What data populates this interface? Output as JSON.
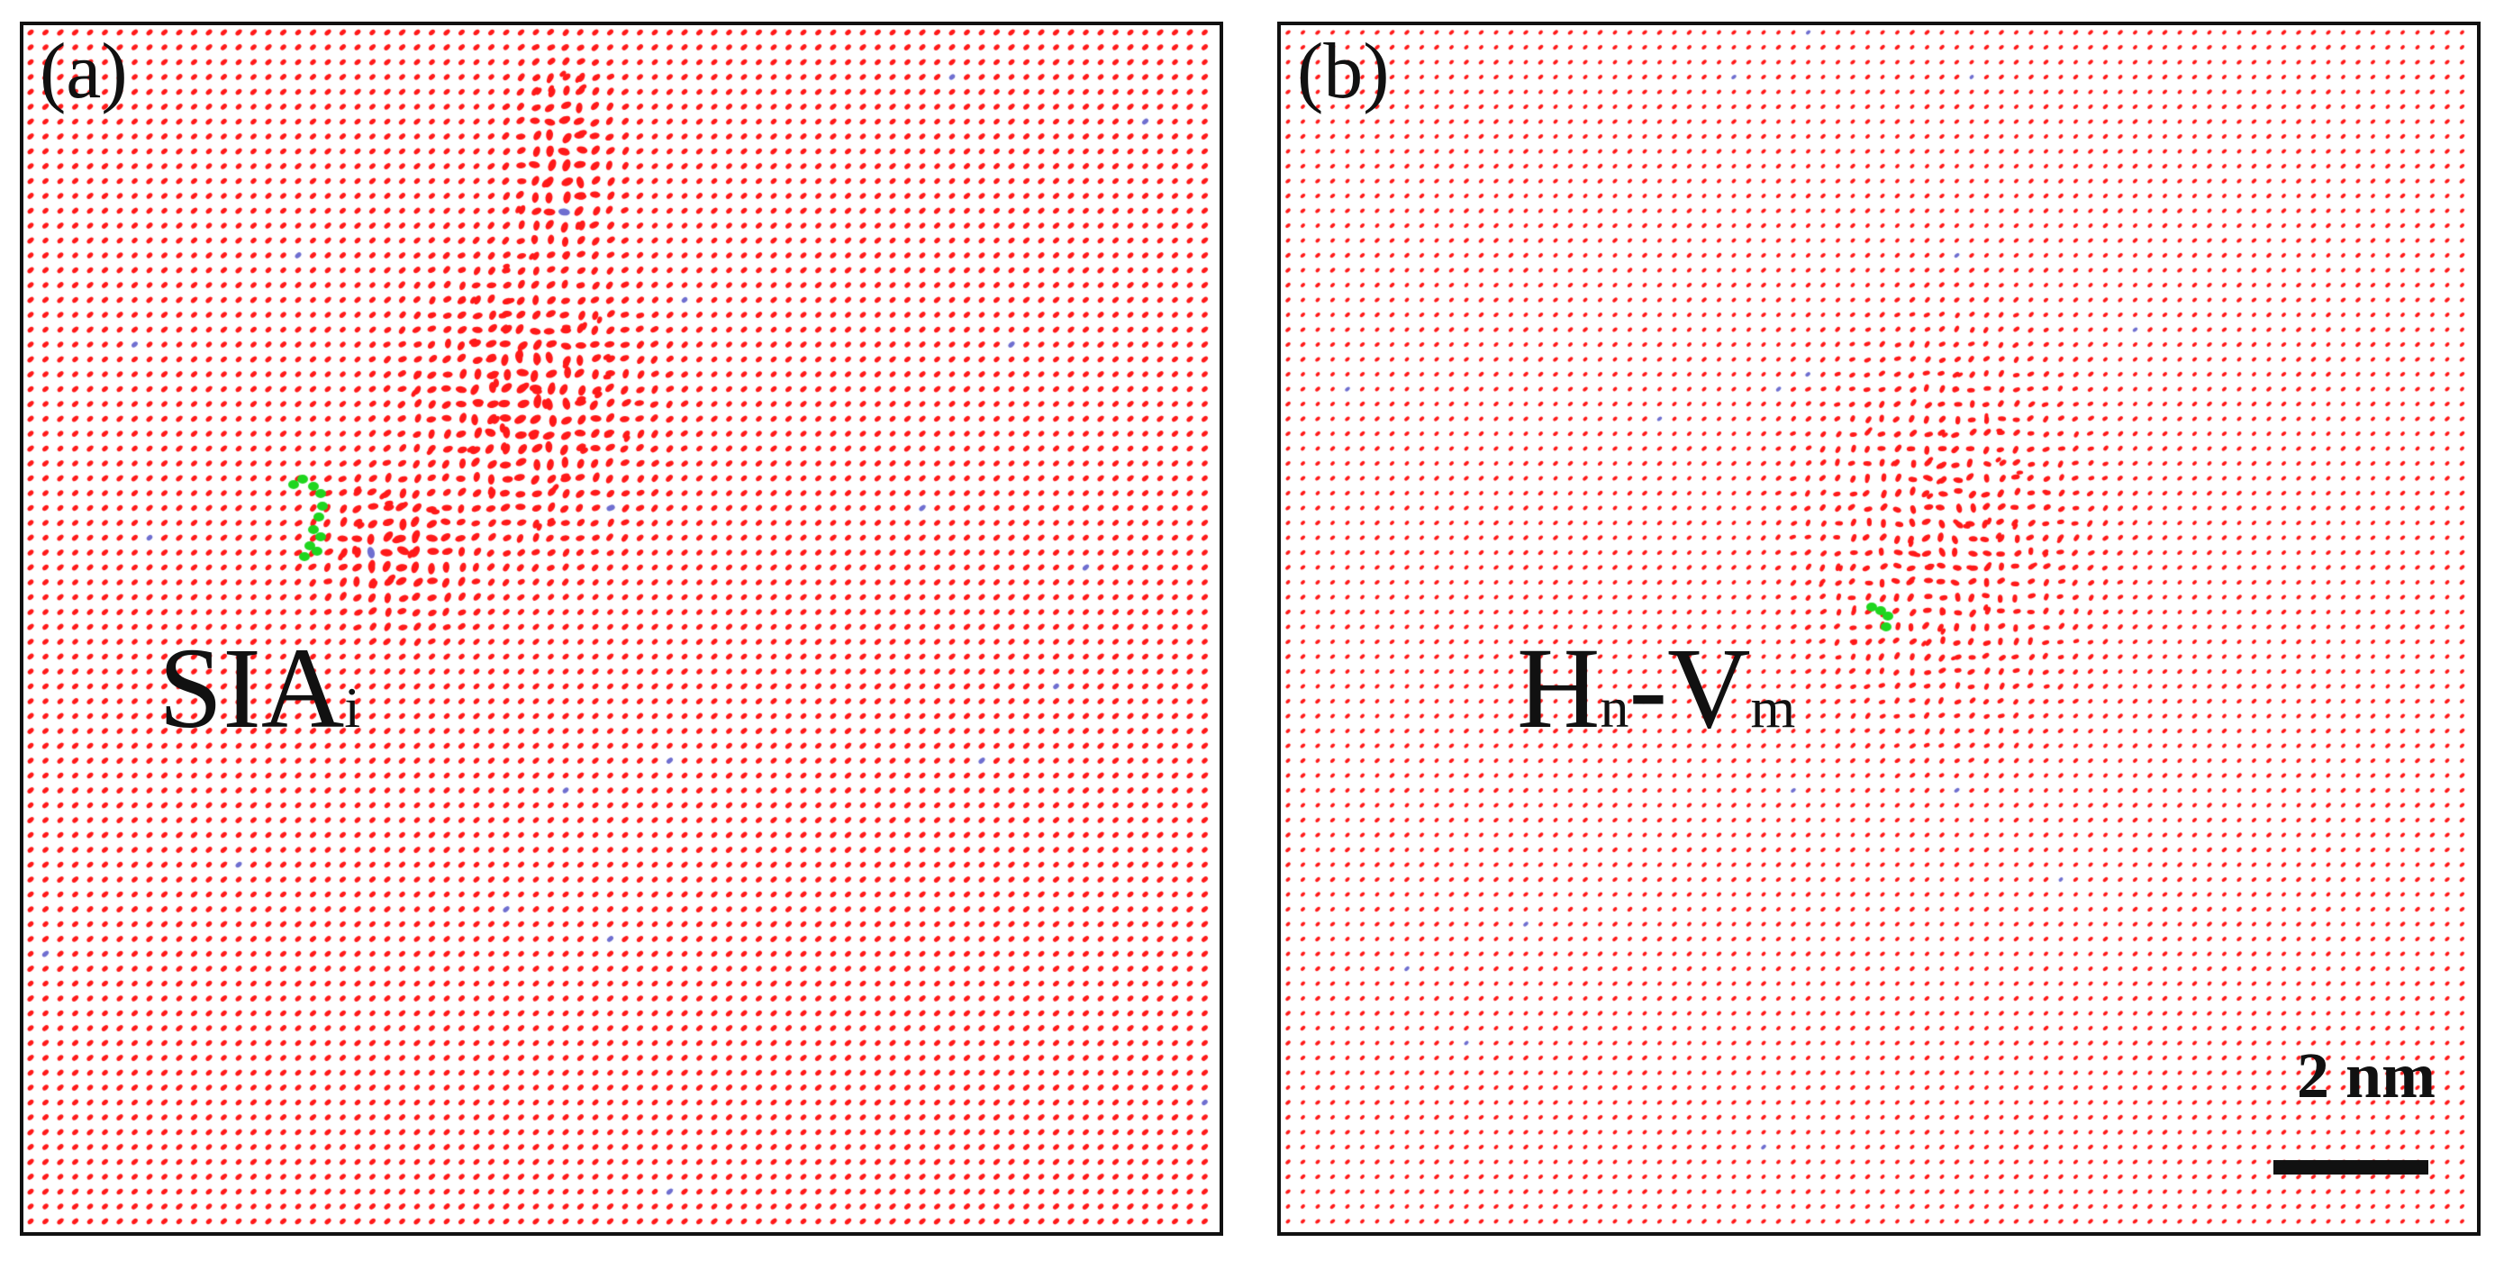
{
  "panels": [
    {
      "letter": "(a)",
      "label_main": "SIA",
      "label_sub": "i",
      "label_suffix": ""
    },
    {
      "letter": "(b)",
      "label_main": "H",
      "label_sub": "n",
      "label_mid": "-V",
      "label_sub2": "m"
    }
  ],
  "scale_bar": {
    "label": "2 nm"
  },
  "colors": {
    "atom": "#ff1a1a",
    "defect": "#1fd61f",
    "minor": "#6f6fd0",
    "frame": "#111111"
  }
}
